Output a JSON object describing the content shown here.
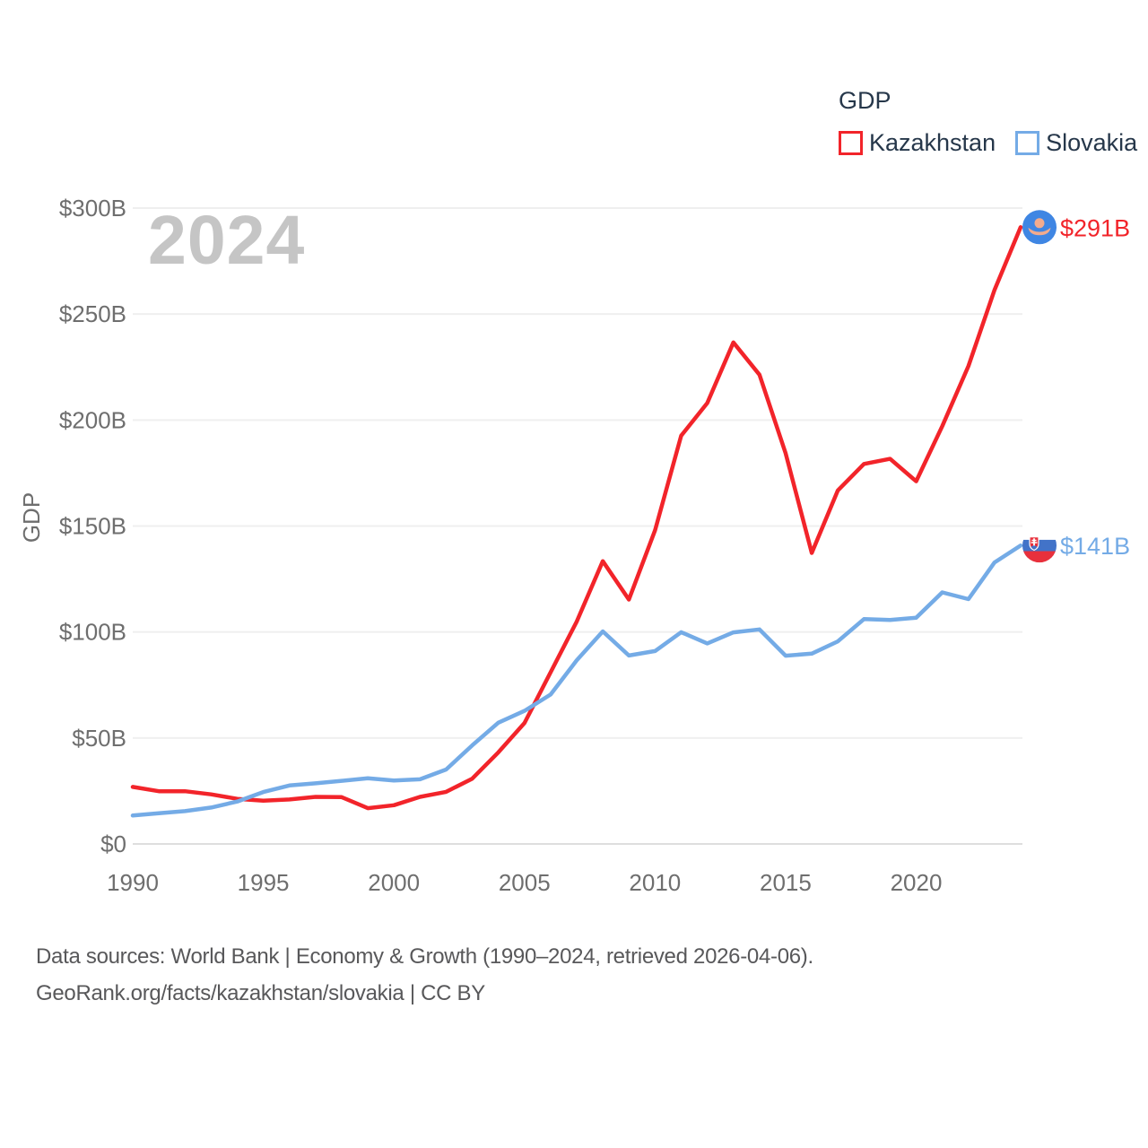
{
  "legend": {
    "title": "GDP",
    "items": [
      {
        "label": "Kazakhstan",
        "color": "#f2242a"
      },
      {
        "label": "Slovakia",
        "color": "#74abe6"
      }
    ]
  },
  "watermark": "2024",
  "footer": {
    "line1": "Data sources: World Bank | Economy & Growth (1990–2024, retrieved 2026-04-06).",
    "line2": "GeoRank.org/facts/kazakhstan/slovakia | CC BY"
  },
  "chart_data": {
    "type": "line",
    "title": "GDP",
    "ylabel": "GDP",
    "xlabel": "",
    "grid": true,
    "legend_position": "top-right",
    "xlim": [
      1990,
      2024
    ],
    "ylim": [
      0,
      300
    ],
    "x": [
      1990,
      1991,
      1992,
      1993,
      1994,
      1995,
      1996,
      1997,
      1998,
      1999,
      2000,
      2001,
      2002,
      2003,
      2004,
      2005,
      2006,
      2007,
      2008,
      2009,
      2010,
      2011,
      2012,
      2013,
      2014,
      2015,
      2016,
      2017,
      2018,
      2019,
      2020,
      2021,
      2022,
      2023,
      2024
    ],
    "xticks": [
      "1990",
      "1995",
      "2000",
      "2005",
      "2010",
      "2015",
      "2020"
    ],
    "xtick_years": [
      1990,
      1995,
      2000,
      2005,
      2010,
      2015,
      2020
    ],
    "yticks": [
      {
        "value": 0,
        "label": "$0"
      },
      {
        "value": 50,
        "label": "$50B"
      },
      {
        "value": 100,
        "label": "$100B"
      },
      {
        "value": 150,
        "label": "$150B"
      },
      {
        "value": 200,
        "label": "$200B"
      },
      {
        "value": 250,
        "label": "$250B"
      },
      {
        "value": 300,
        "label": "$300B"
      }
    ],
    "series": [
      {
        "name": "Kazakhstan",
        "color": "#f2242a",
        "end_label": "$291B",
        "flag": "kazakhstan",
        "values": [
          26.9,
          24.9,
          24.9,
          23.4,
          21.3,
          20.4,
          21.0,
          22.2,
          22.1,
          16.9,
          18.3,
          22.2,
          24.6,
          30.8,
          43.2,
          57.1,
          81.0,
          104.9,
          133.4,
          115.3,
          148.0,
          192.6,
          208.0,
          236.6,
          221.4,
          184.4,
          137.3,
          166.8,
          179.3,
          181.7,
          171.1,
          197.1,
          225.5,
          261.4,
          291.0
        ]
      },
      {
        "name": "Slovakia",
        "color": "#74abe6",
        "end_label": "$141B",
        "flag": "slovakia",
        "values": [
          13.4,
          14.5,
          15.5,
          17.2,
          20.0,
          24.5,
          27.6,
          28.6,
          29.8,
          31.0,
          29.9,
          30.5,
          35.1,
          46.5,
          57.2,
          62.8,
          70.5,
          86.6,
          100.3,
          88.9,
          91.0,
          99.9,
          94.6,
          99.8,
          101.2,
          88.8,
          89.8,
          95.6,
          106.1,
          105.7,
          106.7,
          118.7,
          115.5,
          132.8,
          140.8
        ]
      }
    ]
  }
}
